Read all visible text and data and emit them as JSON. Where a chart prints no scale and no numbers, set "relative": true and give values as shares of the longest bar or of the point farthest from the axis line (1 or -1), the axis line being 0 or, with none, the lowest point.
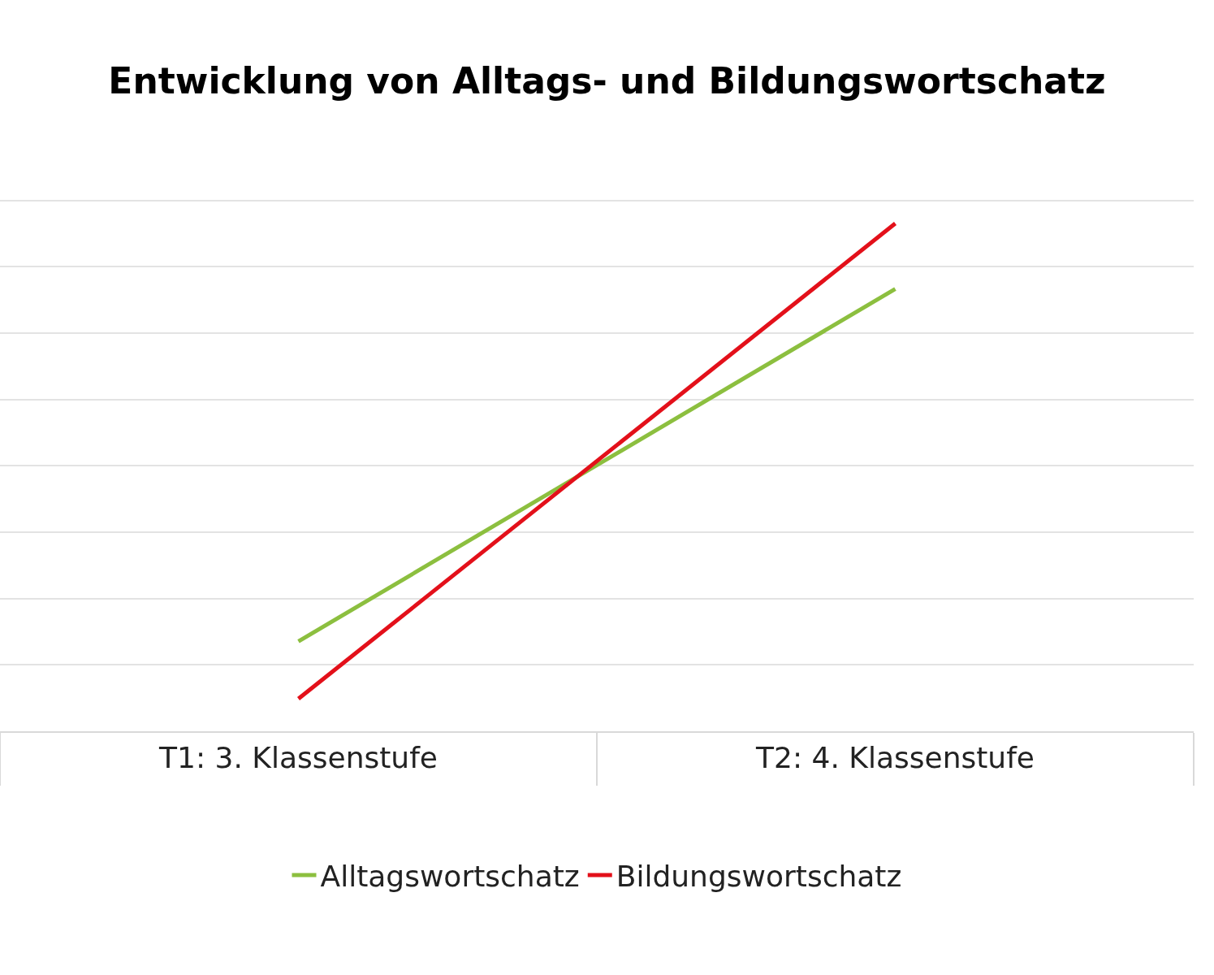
{
  "chart_data": {
    "type": "line",
    "title": "Entwicklung von Alltags- und Bildungswortschatz",
    "relative": true,
    "categories": [
      "T1: 3. Klassenstufe",
      "T2: 4. Klassenstufe"
    ],
    "series": [
      {
        "name": "Alltagswortschatz",
        "color": "#8cbf3f",
        "values": [
          0.177,
          0.871
        ]
      },
      {
        "name": "Bildungswortschatz",
        "color": "#e3101a",
        "values": [
          0.064,
          1
        ]
      }
    ],
    "grid": "y",
    "legend": "bottom",
    "marker": "none",
    "line_style": "solid"
  }
}
